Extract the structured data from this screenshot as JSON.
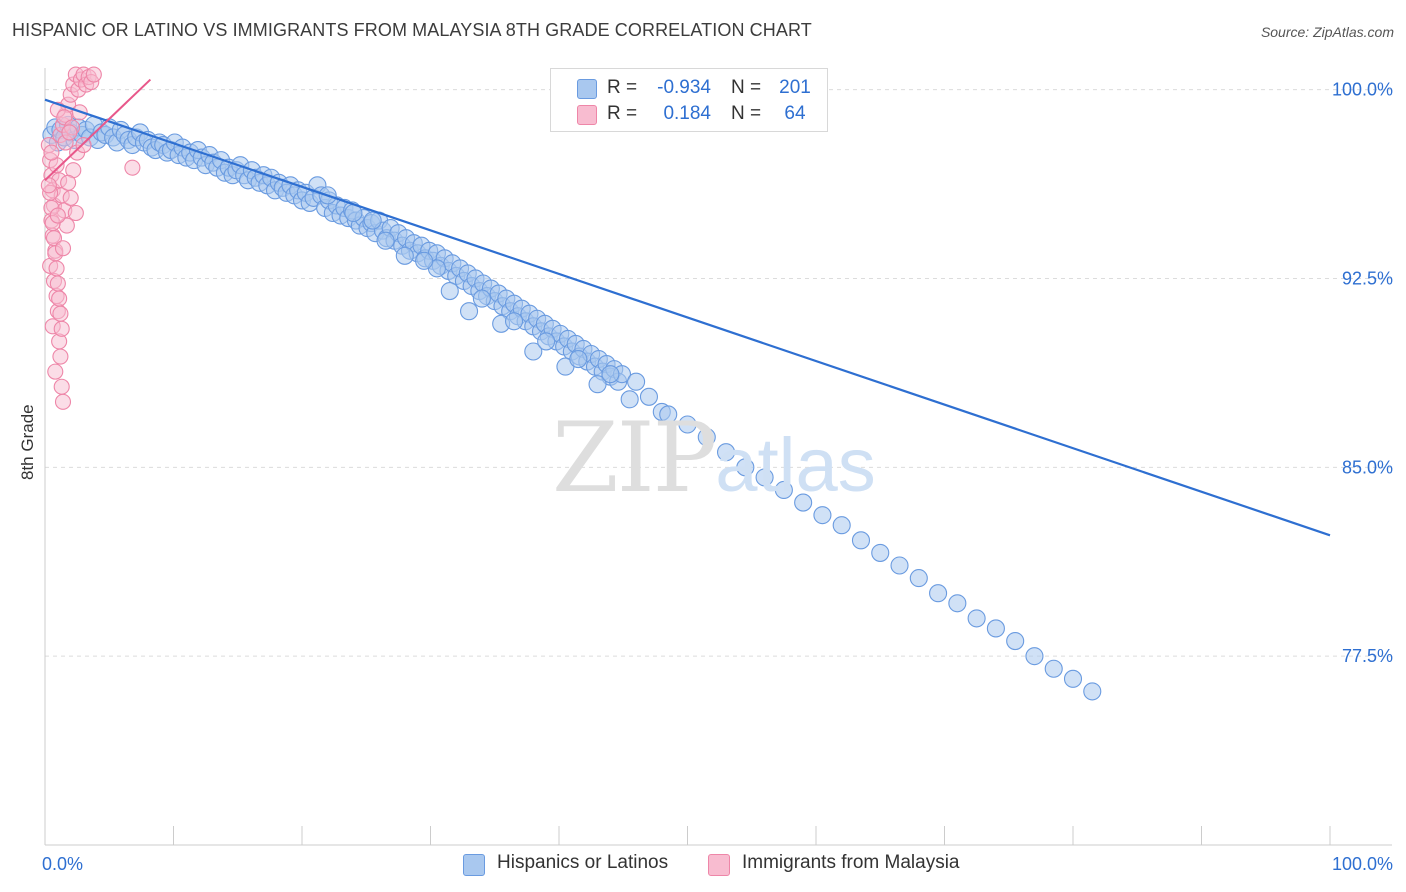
{
  "title": "HISPANIC OR LATINO VS IMMIGRANTS FROM MALAYSIA 8TH GRADE CORRELATION CHART",
  "source": "Source: ZipAtlas.com",
  "watermark": {
    "zip": "ZIP",
    "atlas": "atlas"
  },
  "legend": {
    "rows": [
      {
        "r_label": "R =",
        "r_value": "-0.934",
        "n_label": "N =",
        "n_value": "201"
      },
      {
        "r_label": "R =",
        "r_value": "0.184",
        "n_label": "N =",
        "n_value": "64"
      }
    ]
  },
  "colors": {
    "blue_fill": "#a9c8ef",
    "blue_stroke": "#6a9be0",
    "blue_line": "#2e6fd1",
    "pink_fill": "#f8bcd0",
    "pink_stroke": "#ee86a8",
    "pink_line": "#e8578a",
    "tick_label": "#2e6fd1"
  },
  "chart_data": {
    "type": "scatter",
    "title": "HISPANIC OR LATINO VS IMMIGRANTS FROM MALAYSIA 8TH GRADE CORRELATION CHART",
    "xlabel": "",
    "ylabel": "8th Grade",
    "xlim": [
      0,
      100
    ],
    "ylim": [
      70,
      100.7
    ],
    "x_tick_labels": [
      "0.0%",
      "100.0%"
    ],
    "y_ticks": [
      {
        "value": 100.0,
        "label": "100.0%"
      },
      {
        "value": 92.5,
        "label": "92.5%"
      },
      {
        "value": 85.0,
        "label": "85.0%"
      },
      {
        "value": 77.5,
        "label": "77.5%"
      }
    ],
    "grid": "horizontal dashed",
    "legend_position": "bottom-center",
    "series": [
      {
        "name": "Hispanics or Latinos",
        "color": "#a9c8ef",
        "trend": {
          "x": [
            0,
            100
          ],
          "y": [
            99.6,
            82.3
          ]
        },
        "points": [
          [
            0.5,
            98.2
          ],
          [
            0.8,
            98.5
          ],
          [
            1.0,
            97.9
          ],
          [
            1.2,
            98.4
          ],
          [
            1.5,
            98.1
          ],
          [
            1.8,
            98.6
          ],
          [
            2.0,
            98.3
          ],
          [
            2.3,
            98.0
          ],
          [
            2.6,
            98.5
          ],
          [
            2.9,
            98.2
          ],
          [
            3.2,
            98.4
          ],
          [
            3.5,
            98.1
          ],
          [
            3.8,
            98.6
          ],
          [
            4.1,
            98.0
          ],
          [
            4.4,
            98.3
          ],
          [
            4.7,
            98.2
          ],
          [
            5.0,
            98.5
          ],
          [
            5.3,
            98.1
          ],
          [
            5.6,
            97.9
          ],
          [
            5.9,
            98.4
          ],
          [
            6.2,
            98.2
          ],
          [
            6.5,
            98.0
          ],
          [
            6.8,
            97.8
          ],
          [
            7.1,
            98.1
          ],
          [
            7.4,
            98.3
          ],
          [
            7.7,
            97.9
          ],
          [
            8.0,
            98.0
          ],
          [
            8.3,
            97.7
          ],
          [
            8.6,
            97.6
          ],
          [
            8.9,
            97.9
          ],
          [
            9.2,
            97.8
          ],
          [
            9.5,
            97.5
          ],
          [
            9.8,
            97.6
          ],
          [
            10.1,
            97.9
          ],
          [
            10.4,
            97.4
          ],
          [
            10.7,
            97.7
          ],
          [
            11.0,
            97.3
          ],
          [
            11.3,
            97.5
          ],
          [
            11.6,
            97.2
          ],
          [
            11.9,
            97.6
          ],
          [
            12.2,
            97.3
          ],
          [
            12.5,
            97.0
          ],
          [
            12.8,
            97.4
          ],
          [
            13.1,
            97.1
          ],
          [
            13.4,
            96.9
          ],
          [
            13.7,
            97.2
          ],
          [
            14.0,
            96.7
          ],
          [
            14.3,
            96.9
          ],
          [
            14.6,
            96.6
          ],
          [
            14.9,
            96.8
          ],
          [
            15.2,
            97.0
          ],
          [
            15.5,
            96.6
          ],
          [
            15.8,
            96.4
          ],
          [
            16.1,
            96.8
          ],
          [
            16.4,
            96.5
          ],
          [
            16.7,
            96.3
          ],
          [
            17.0,
            96.6
          ],
          [
            17.3,
            96.2
          ],
          [
            17.6,
            96.5
          ],
          [
            17.9,
            96.0
          ],
          [
            18.2,
            96.3
          ],
          [
            18.5,
            96.1
          ],
          [
            18.8,
            95.9
          ],
          [
            19.1,
            96.2
          ],
          [
            19.4,
            95.8
          ],
          [
            19.7,
            96.0
          ],
          [
            20.0,
            95.6
          ],
          [
            20.3,
            95.9
          ],
          [
            20.6,
            95.5
          ],
          [
            20.9,
            95.7
          ],
          [
            21.2,
            96.2
          ],
          [
            21.5,
            95.8
          ],
          [
            21.8,
            95.3
          ],
          [
            22.1,
            95.6
          ],
          [
            22.4,
            95.1
          ],
          [
            22.7,
            95.4
          ],
          [
            23.0,
            95.0
          ],
          [
            23.3,
            95.3
          ],
          [
            23.6,
            94.9
          ],
          [
            23.9,
            95.2
          ],
          [
            24.2,
            94.8
          ],
          [
            24.5,
            94.6
          ],
          [
            24.8,
            94.9
          ],
          [
            25.1,
            94.5
          ],
          [
            25.4,
            94.7
          ],
          [
            25.7,
            94.3
          ],
          [
            26.0,
            94.8
          ],
          [
            26.3,
            94.4
          ],
          [
            26.6,
            94.1
          ],
          [
            26.9,
            94.5
          ],
          [
            27.2,
            94.0
          ],
          [
            27.5,
            94.3
          ],
          [
            27.8,
            93.8
          ],
          [
            28.1,
            94.1
          ],
          [
            28.4,
            93.6
          ],
          [
            28.7,
            93.9
          ],
          [
            29.0,
            93.5
          ],
          [
            29.3,
            93.8
          ],
          [
            29.6,
            93.3
          ],
          [
            29.9,
            93.6
          ],
          [
            30.2,
            93.2
          ],
          [
            30.5,
            93.5
          ],
          [
            30.8,
            93.0
          ],
          [
            31.1,
            93.3
          ],
          [
            31.4,
            92.8
          ],
          [
            31.7,
            93.1
          ],
          [
            32.0,
            92.6
          ],
          [
            32.3,
            92.9
          ],
          [
            32.6,
            92.4
          ],
          [
            32.9,
            92.7
          ],
          [
            33.2,
            92.2
          ],
          [
            33.5,
            92.5
          ],
          [
            33.8,
            92.0
          ],
          [
            34.1,
            92.3
          ],
          [
            34.4,
            91.8
          ],
          [
            34.7,
            92.1
          ],
          [
            35.0,
            91.6
          ],
          [
            35.3,
            91.9
          ],
          [
            35.6,
            91.4
          ],
          [
            35.9,
            91.7
          ],
          [
            36.2,
            91.2
          ],
          [
            36.5,
            91.5
          ],
          [
            36.8,
            91.0
          ],
          [
            37.1,
            91.3
          ],
          [
            37.4,
            90.8
          ],
          [
            37.7,
            91.1
          ],
          [
            38.0,
            90.6
          ],
          [
            38.3,
            90.9
          ],
          [
            38.6,
            90.4
          ],
          [
            38.9,
            90.7
          ],
          [
            39.2,
            90.2
          ],
          [
            39.5,
            90.5
          ],
          [
            39.8,
            90.0
          ],
          [
            40.1,
            90.3
          ],
          [
            40.4,
            89.8
          ],
          [
            40.7,
            90.1
          ],
          [
            41.0,
            89.6
          ],
          [
            41.3,
            89.9
          ],
          [
            41.6,
            89.4
          ],
          [
            41.9,
            89.7
          ],
          [
            42.2,
            89.2
          ],
          [
            42.5,
            89.5
          ],
          [
            42.8,
            89.0
          ],
          [
            43.1,
            89.3
          ],
          [
            43.4,
            88.8
          ],
          [
            43.7,
            89.1
          ],
          [
            44.0,
            88.6
          ],
          [
            44.3,
            88.9
          ],
          [
            44.6,
            88.4
          ],
          [
            44.9,
            88.7
          ],
          [
            25.5,
            94.8
          ],
          [
            28.0,
            93.4
          ],
          [
            30.5,
            92.9
          ],
          [
            33.0,
            91.2
          ],
          [
            35.5,
            90.7
          ],
          [
            38.0,
            89.6
          ],
          [
            40.5,
            89.0
          ],
          [
            43.0,
            88.3
          ],
          [
            45.5,
            87.7
          ],
          [
            48.0,
            87.2
          ],
          [
            22.0,
            95.8
          ],
          [
            24.0,
            95.1
          ],
          [
            26.5,
            94.0
          ],
          [
            29.5,
            93.2
          ],
          [
            31.5,
            92.0
          ],
          [
            34.0,
            91.7
          ],
          [
            36.5,
            90.8
          ],
          [
            39.0,
            90.0
          ],
          [
            41.5,
            89.3
          ],
          [
            44.0,
            88.7
          ],
          [
            46.0,
            88.4
          ],
          [
            47.0,
            87.8
          ],
          [
            48.5,
            87.1
          ],
          [
            50.0,
            86.7
          ],
          [
            51.5,
            86.2
          ],
          [
            53.0,
            85.6
          ],
          [
            54.5,
            85.0
          ],
          [
            56.0,
            84.6
          ],
          [
            57.5,
            84.1
          ],
          [
            59.0,
            83.6
          ],
          [
            60.5,
            83.1
          ],
          [
            62.0,
            82.7
          ],
          [
            63.5,
            82.1
          ],
          [
            65.0,
            81.6
          ],
          [
            66.5,
            81.1
          ],
          [
            68.0,
            80.6
          ],
          [
            69.5,
            80.0
          ],
          [
            71.0,
            79.6
          ],
          [
            72.5,
            79.0
          ],
          [
            74.0,
            78.6
          ],
          [
            75.5,
            78.1
          ],
          [
            77.0,
            77.5
          ],
          [
            78.5,
            77.0
          ],
          [
            80.0,
            76.6
          ],
          [
            81.5,
            76.1
          ]
        ]
      },
      {
        "name": "Immigrants from Malaysia",
        "color": "#f8bcd0",
        "trend": {
          "x": [
            0,
            8.2
          ],
          "y": [
            96.4,
            100.4
          ]
        },
        "points": [
          [
            0.3,
            97.8
          ],
          [
            0.4,
            97.2
          ],
          [
            0.5,
            96.6
          ],
          [
            0.6,
            96.0
          ],
          [
            0.7,
            95.4
          ],
          [
            0.5,
            94.8
          ],
          [
            0.6,
            94.2
          ],
          [
            0.8,
            93.6
          ],
          [
            0.4,
            93.0
          ],
          [
            0.7,
            92.4
          ],
          [
            0.9,
            91.8
          ],
          [
            1.0,
            91.2
          ],
          [
            0.6,
            90.6
          ],
          [
            1.1,
            90.0
          ],
          [
            1.2,
            89.4
          ],
          [
            0.8,
            88.8
          ],
          [
            1.3,
            88.2
          ],
          [
            1.4,
            87.6
          ],
          [
            0.9,
            97.0
          ],
          [
            1.1,
            96.4
          ],
          [
            1.3,
            95.8
          ],
          [
            1.5,
            95.2
          ],
          [
            1.7,
            94.6
          ],
          [
            1.2,
            98.2
          ],
          [
            1.4,
            98.6
          ],
          [
            1.6,
            99.0
          ],
          [
            1.8,
            99.4
          ],
          [
            2.0,
            99.8
          ],
          [
            2.2,
            100.2
          ],
          [
            2.4,
            100.6
          ],
          [
            2.6,
            100.0
          ],
          [
            2.8,
            100.4
          ],
          [
            3.0,
            100.6
          ],
          [
            3.2,
            100.2
          ],
          [
            3.4,
            100.5
          ],
          [
            3.6,
            100.3
          ],
          [
            3.8,
            100.6
          ],
          [
            1.0,
            99.2
          ],
          [
            1.5,
            98.9
          ],
          [
            2.1,
            98.5
          ],
          [
            0.4,
            95.9
          ],
          [
            0.5,
            95.3
          ],
          [
            0.6,
            94.7
          ],
          [
            0.7,
            94.1
          ],
          [
            0.8,
            93.5
          ],
          [
            0.9,
            92.9
          ],
          [
            1.0,
            92.3
          ],
          [
            1.1,
            91.7
          ],
          [
            1.2,
            91.1
          ],
          [
            1.3,
            90.5
          ],
          [
            2.5,
            97.5
          ],
          [
            3.0,
            97.8
          ],
          [
            2.2,
            96.8
          ],
          [
            1.8,
            96.3
          ],
          [
            2.0,
            95.7
          ],
          [
            2.4,
            95.1
          ],
          [
            6.8,
            96.9
          ],
          [
            1.6,
            97.9
          ],
          [
            1.9,
            98.3
          ],
          [
            2.7,
            99.1
          ],
          [
            0.3,
            96.2
          ],
          [
            0.5,
            97.5
          ],
          [
            1.0,
            95.0
          ],
          [
            1.4,
            93.7
          ]
        ]
      }
    ],
    "legend_entries": [
      "Hispanics or Latinos",
      "Immigrants from Malaysia"
    ]
  }
}
